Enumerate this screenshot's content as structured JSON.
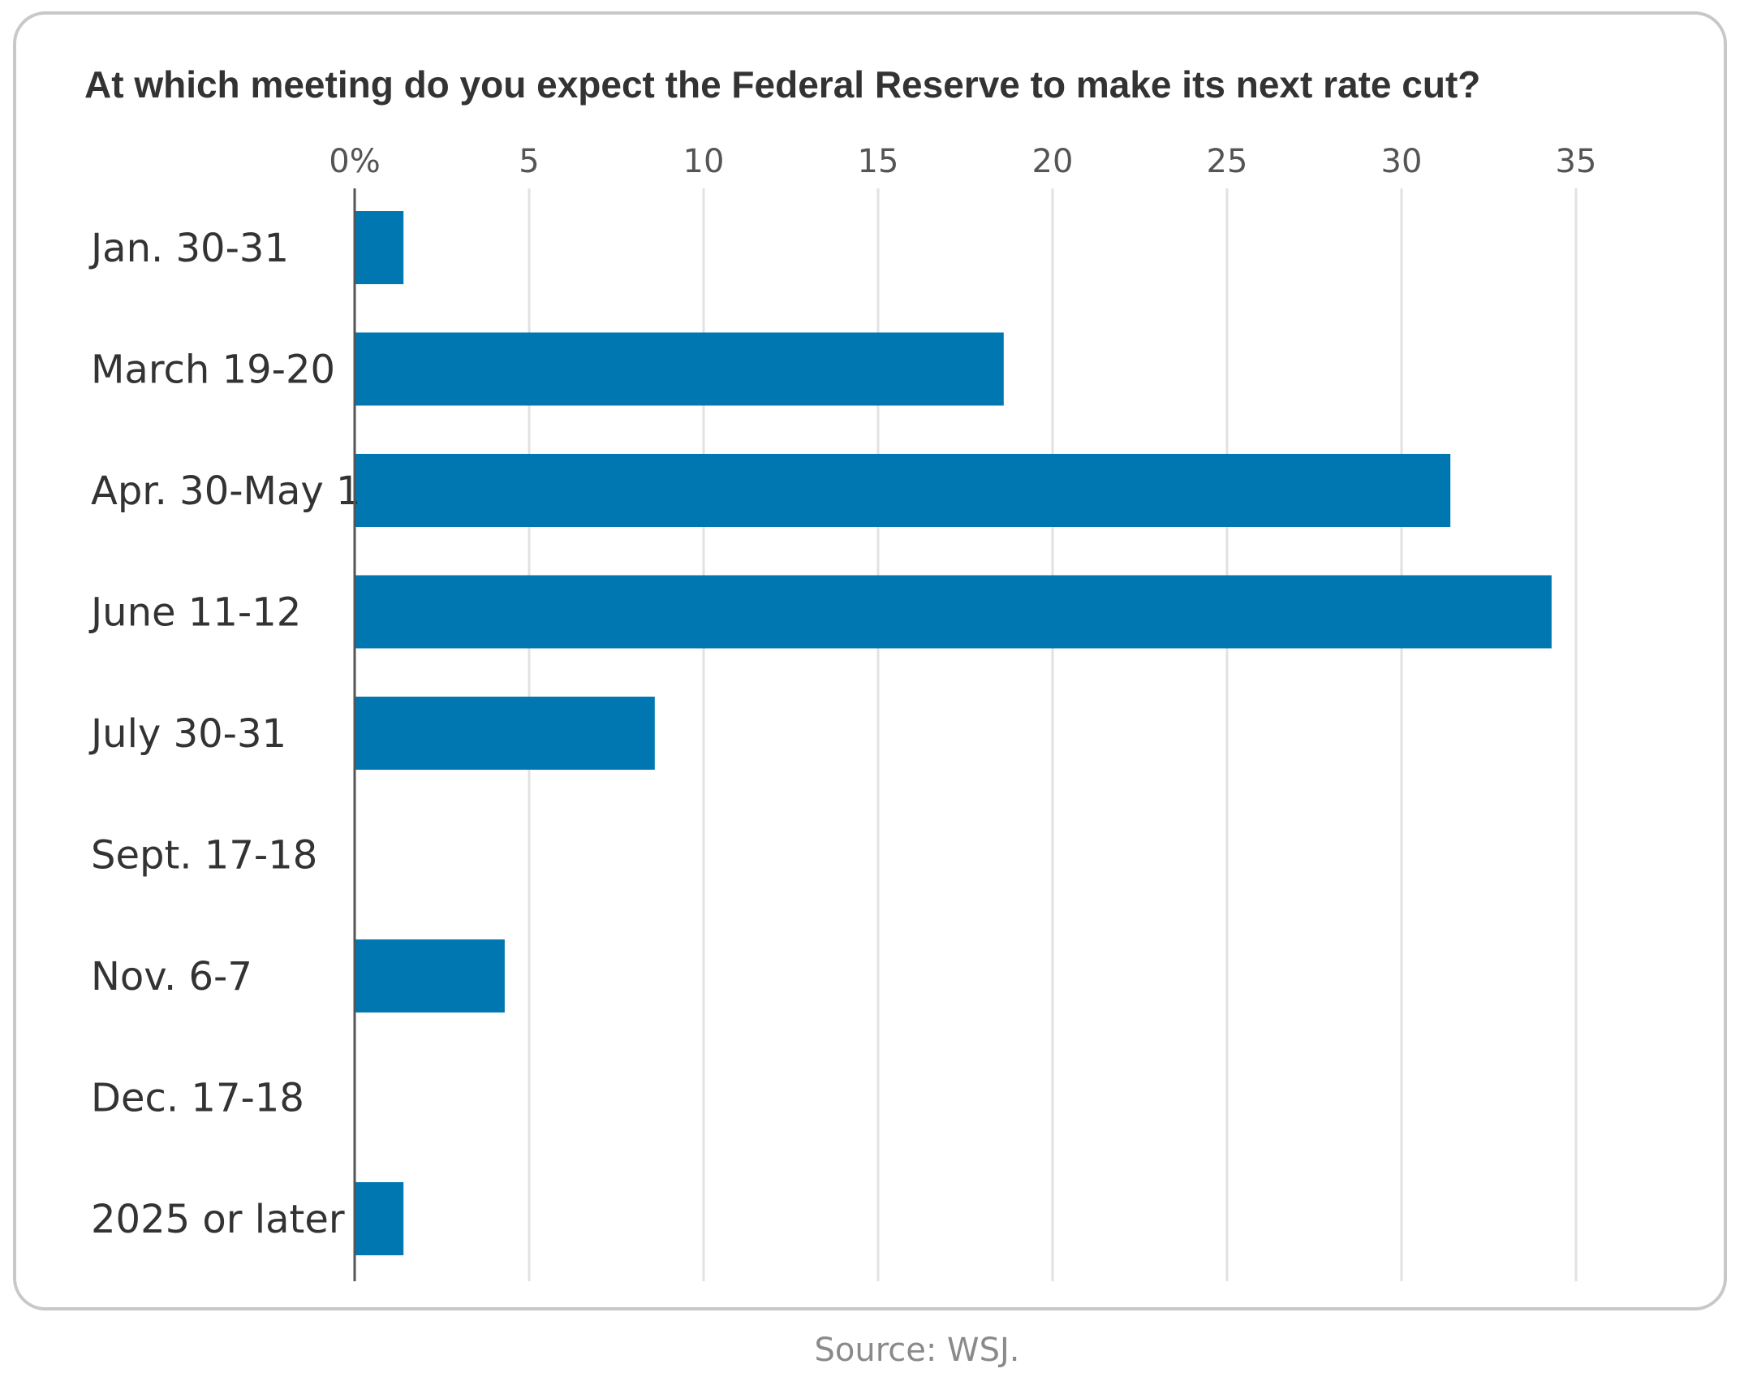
{
  "chart_data": {
    "type": "bar",
    "orientation": "horizontal",
    "title": "At which meeting do you expect the Federal Reserve to make its next rate cut?",
    "categories": [
      "Jan. 30-31",
      "March 19-20",
      "Apr. 30-May 1",
      "June 11-12",
      "July 30-31",
      "Sept. 17-18",
      "Nov. 6-7",
      "Dec. 17-18",
      "2025 or later"
    ],
    "values": [
      1.4,
      18.6,
      31.4,
      34.3,
      8.6,
      0,
      4.3,
      0,
      1.4
    ],
    "xlim": [
      0,
      35
    ],
    "ticks": [
      0,
      5,
      10,
      15,
      20,
      25,
      30,
      35
    ],
    "tick_labels": [
      "0%",
      "5",
      "10",
      "15",
      "20",
      "25",
      "30",
      "35"
    ],
    "grid": true,
    "bar_color": "#0077b0",
    "source": "Source: WSJ."
  }
}
